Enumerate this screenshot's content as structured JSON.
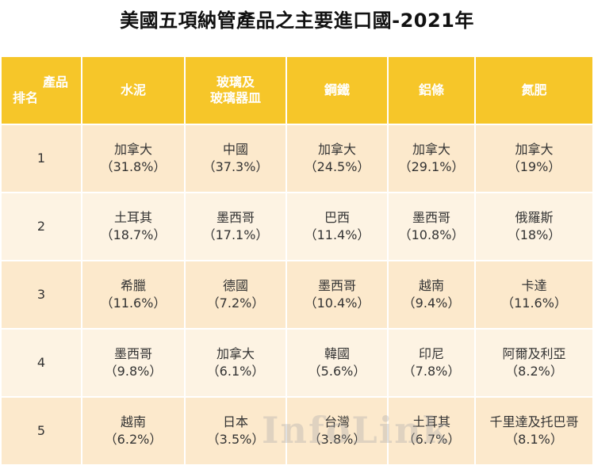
{
  "title": "美國五項納管產品之主要進口國-2021年",
  "header": {
    "corner_top": "產品",
    "corner_bottom": "排名",
    "products": [
      "水泥",
      "玻璃及\n玻璃器皿",
      "鋼鐵",
      "鋁條",
      "氮肥"
    ]
  },
  "rows": [
    {
      "rank": "1",
      "cells": [
        {
          "country": "加拿大",
          "pct": "（31.8%）"
        },
        {
          "country": "中國",
          "pct": "（37.3%）"
        },
        {
          "country": "加拿大",
          "pct": "（24.5%）"
        },
        {
          "country": "加拿大",
          "pct": "（29.1%）"
        },
        {
          "country": "加拿大",
          "pct": "（19%）"
        }
      ]
    },
    {
      "rank": "2",
      "cells": [
        {
          "country": "土耳其",
          "pct": "（18.7%）"
        },
        {
          "country": "墨西哥",
          "pct": "（17.1%）"
        },
        {
          "country": "巴西",
          "pct": "（11.4%）"
        },
        {
          "country": "墨西哥",
          "pct": "（10.8%）"
        },
        {
          "country": "俄羅斯",
          "pct": "（18%）"
        }
      ]
    },
    {
      "rank": "3",
      "cells": [
        {
          "country": "希臘",
          "pct": "（11.6%）"
        },
        {
          "country": "德國",
          "pct": "（7.2%）"
        },
        {
          "country": "墨西哥",
          "pct": "（10.4%）"
        },
        {
          "country": "越南",
          "pct": "（9.4%）"
        },
        {
          "country": "卡達",
          "pct": "（11.6%）"
        }
      ]
    },
    {
      "rank": "4",
      "cells": [
        {
          "country": "墨西哥",
          "pct": "（9.8%）"
        },
        {
          "country": "加拿大",
          "pct": "（6.1%）"
        },
        {
          "country": "韓國",
          "pct": "（5.6%）"
        },
        {
          "country": "印尼",
          "pct": "（7.8%）"
        },
        {
          "country": "阿爾及利亞",
          "pct": "（8.2%）"
        }
      ]
    },
    {
      "rank": "5",
      "cells": [
        {
          "country": "越南",
          "pct": "（6.2%）"
        },
        {
          "country": "日本",
          "pct": "（3.5%）"
        },
        {
          "country": "台灣",
          "pct": "（3.8%）"
        },
        {
          "country": "土耳其",
          "pct": "（6.7%）"
        },
        {
          "country": "千里達及托巴哥",
          "pct": "（8.1%）"
        }
      ]
    }
  ],
  "watermark": "InfoLink",
  "colors": {
    "header_bg": "#f6c629",
    "row_odd": "#fce9cc",
    "row_even": "#fdf3e3"
  }
}
